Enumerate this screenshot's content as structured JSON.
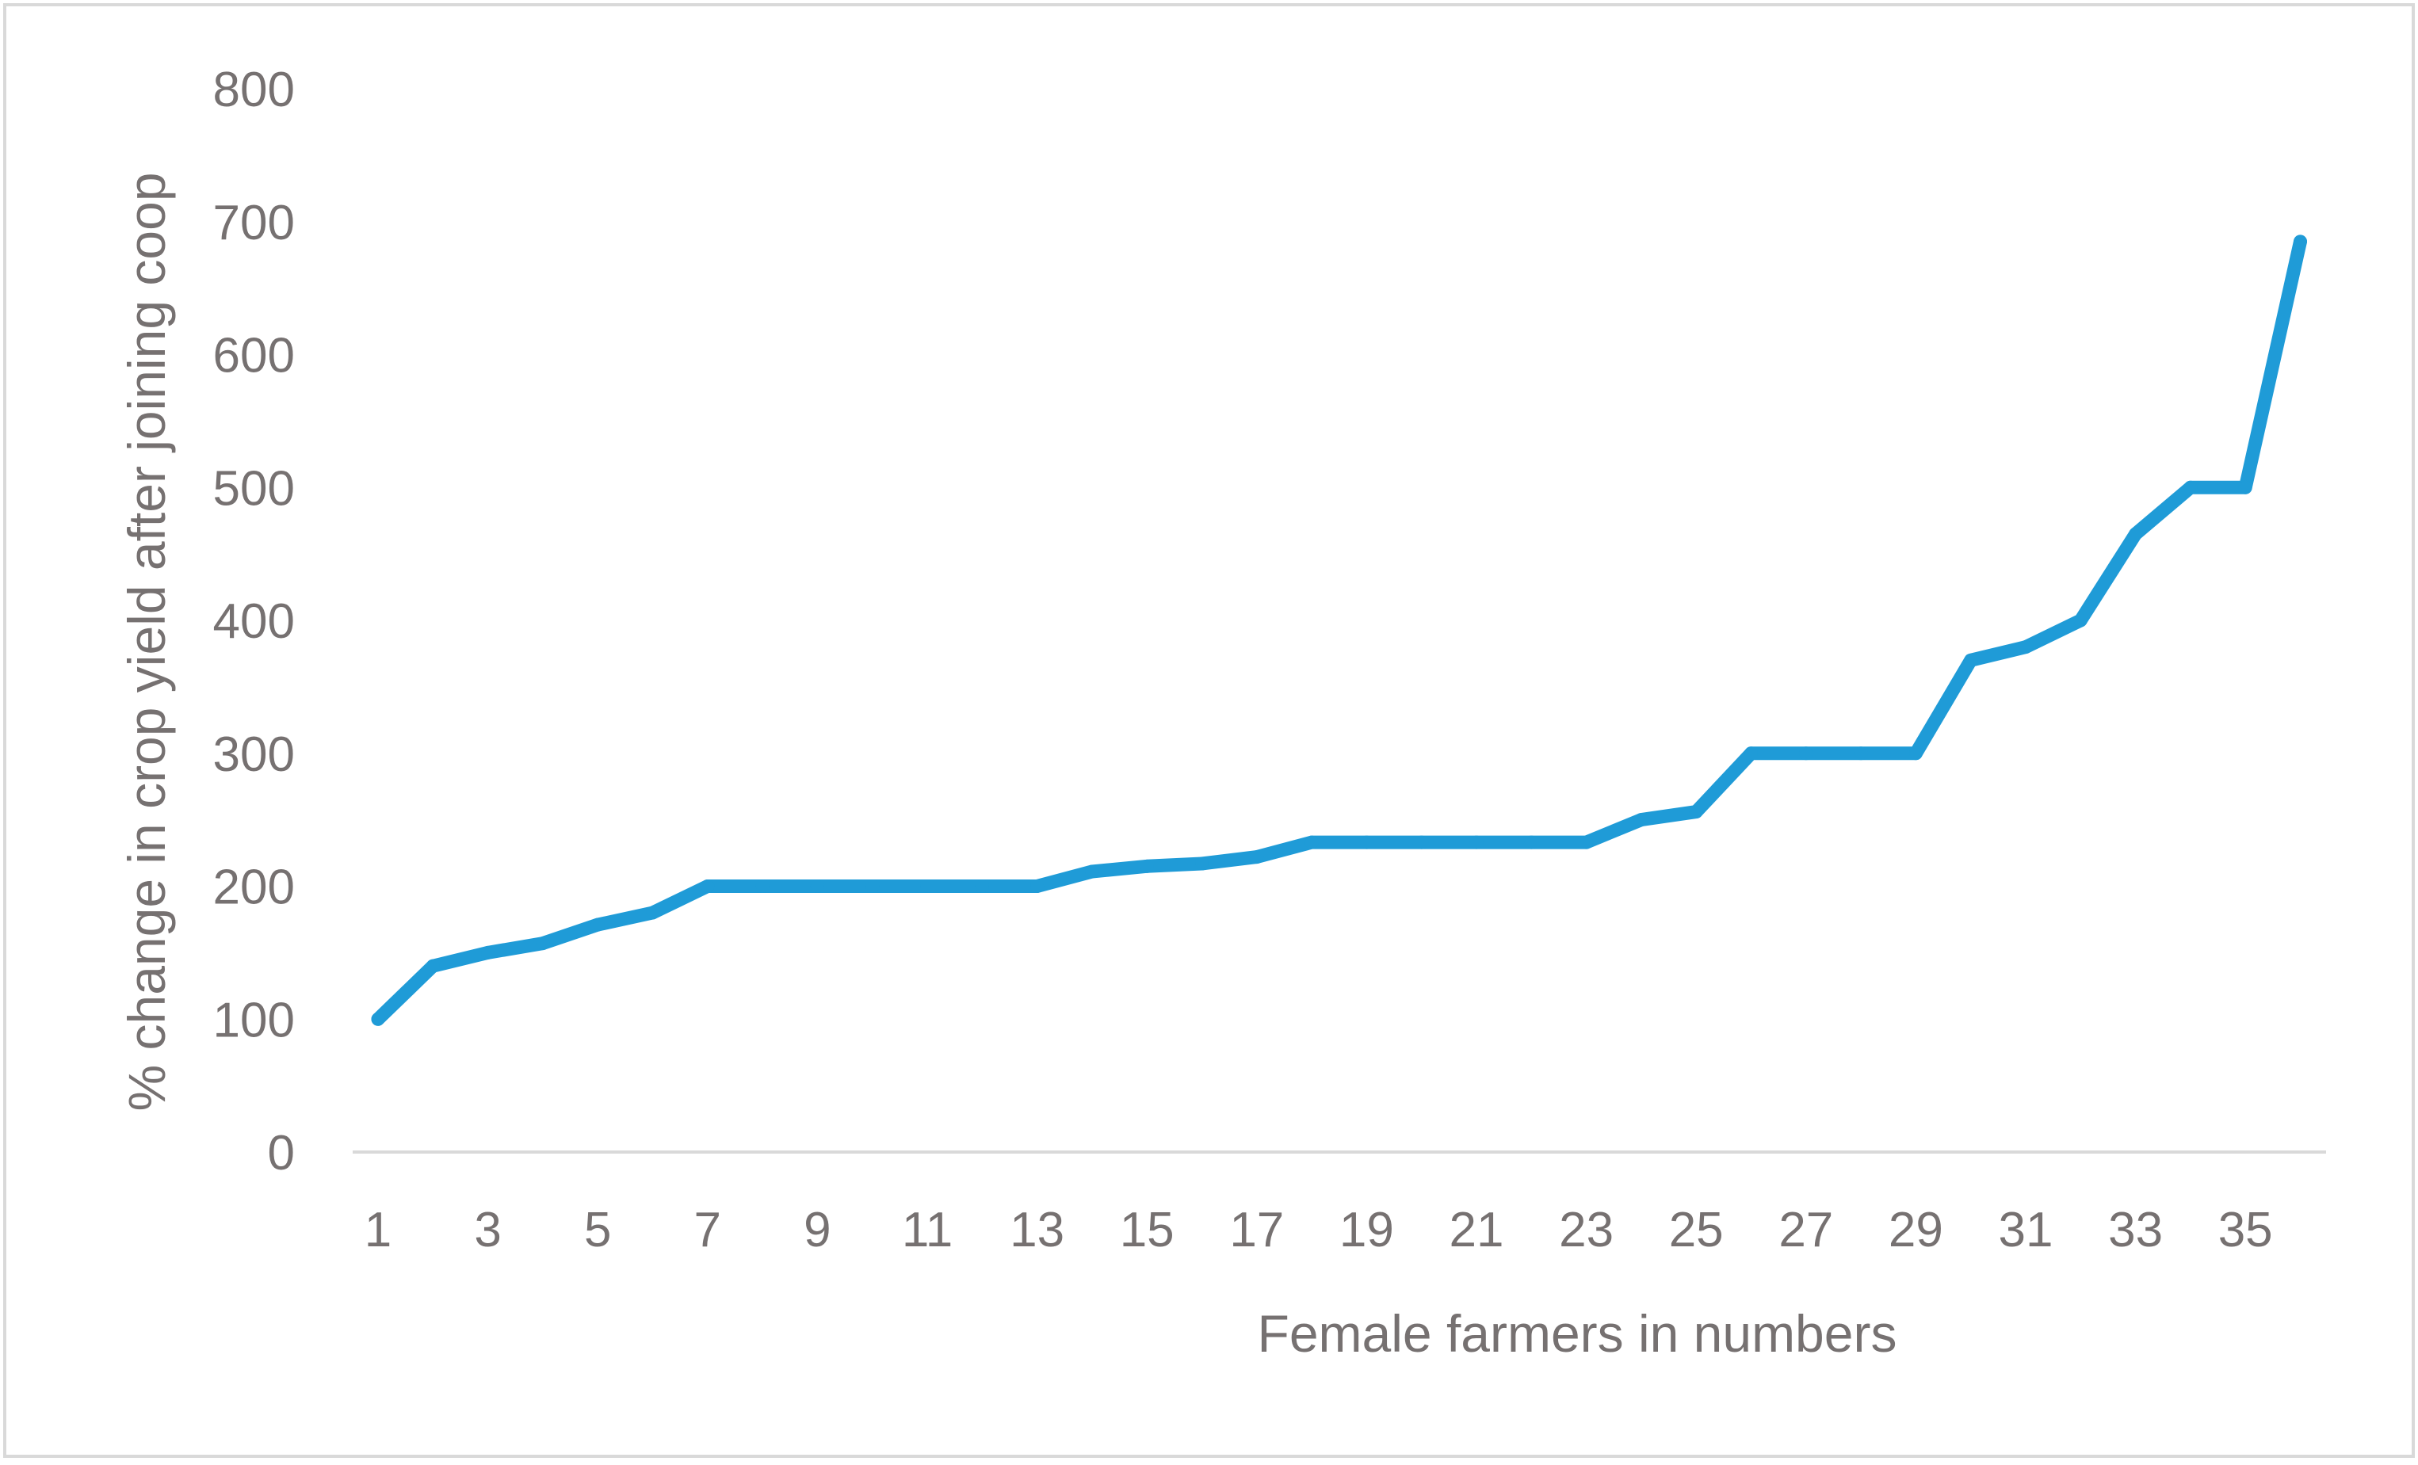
{
  "chart_data": {
    "type": "line",
    "title": "",
    "xlabel": "Female farmers in numbers",
    "ylabel": "% change in crop yield after joining coop",
    "x": [
      1,
      2,
      3,
      4,
      5,
      6,
      7,
      8,
      9,
      10,
      11,
      12,
      13,
      14,
      15,
      16,
      17,
      18,
      19,
      20,
      21,
      22,
      23,
      24,
      25,
      26,
      27,
      28,
      29,
      30,
      31,
      32,
      33,
      34,
      35,
      36
    ],
    "x_tick_labels": [
      "1",
      "3",
      "5",
      "7",
      "9",
      "11",
      "13",
      "15",
      "17",
      "19",
      "21",
      "23",
      "25",
      "27",
      "29",
      "31",
      "33",
      "35"
    ],
    "series": [
      {
        "values": [
          100,
          140,
          150,
          157,
          171,
          180,
          200,
          200,
          200,
          200,
          200,
          200,
          200,
          211,
          215,
          217,
          222,
          233,
          233,
          233,
          233,
          233,
          233,
          250,
          256,
          300,
          300,
          300,
          300,
          370,
          380,
          400,
          465,
          500,
          500,
          685
        ]
      }
    ],
    "ylim": [
      0,
      800
    ],
    "y_ticks": [
      0,
      100,
      200,
      300,
      400,
      500,
      600,
      700,
      800
    ],
    "grid": false,
    "legend": "none",
    "colors": {
      "line": "#1F9BD7",
      "text": "#767171",
      "axis": "#D9D9D9",
      "border": "#D9D9D9"
    }
  }
}
